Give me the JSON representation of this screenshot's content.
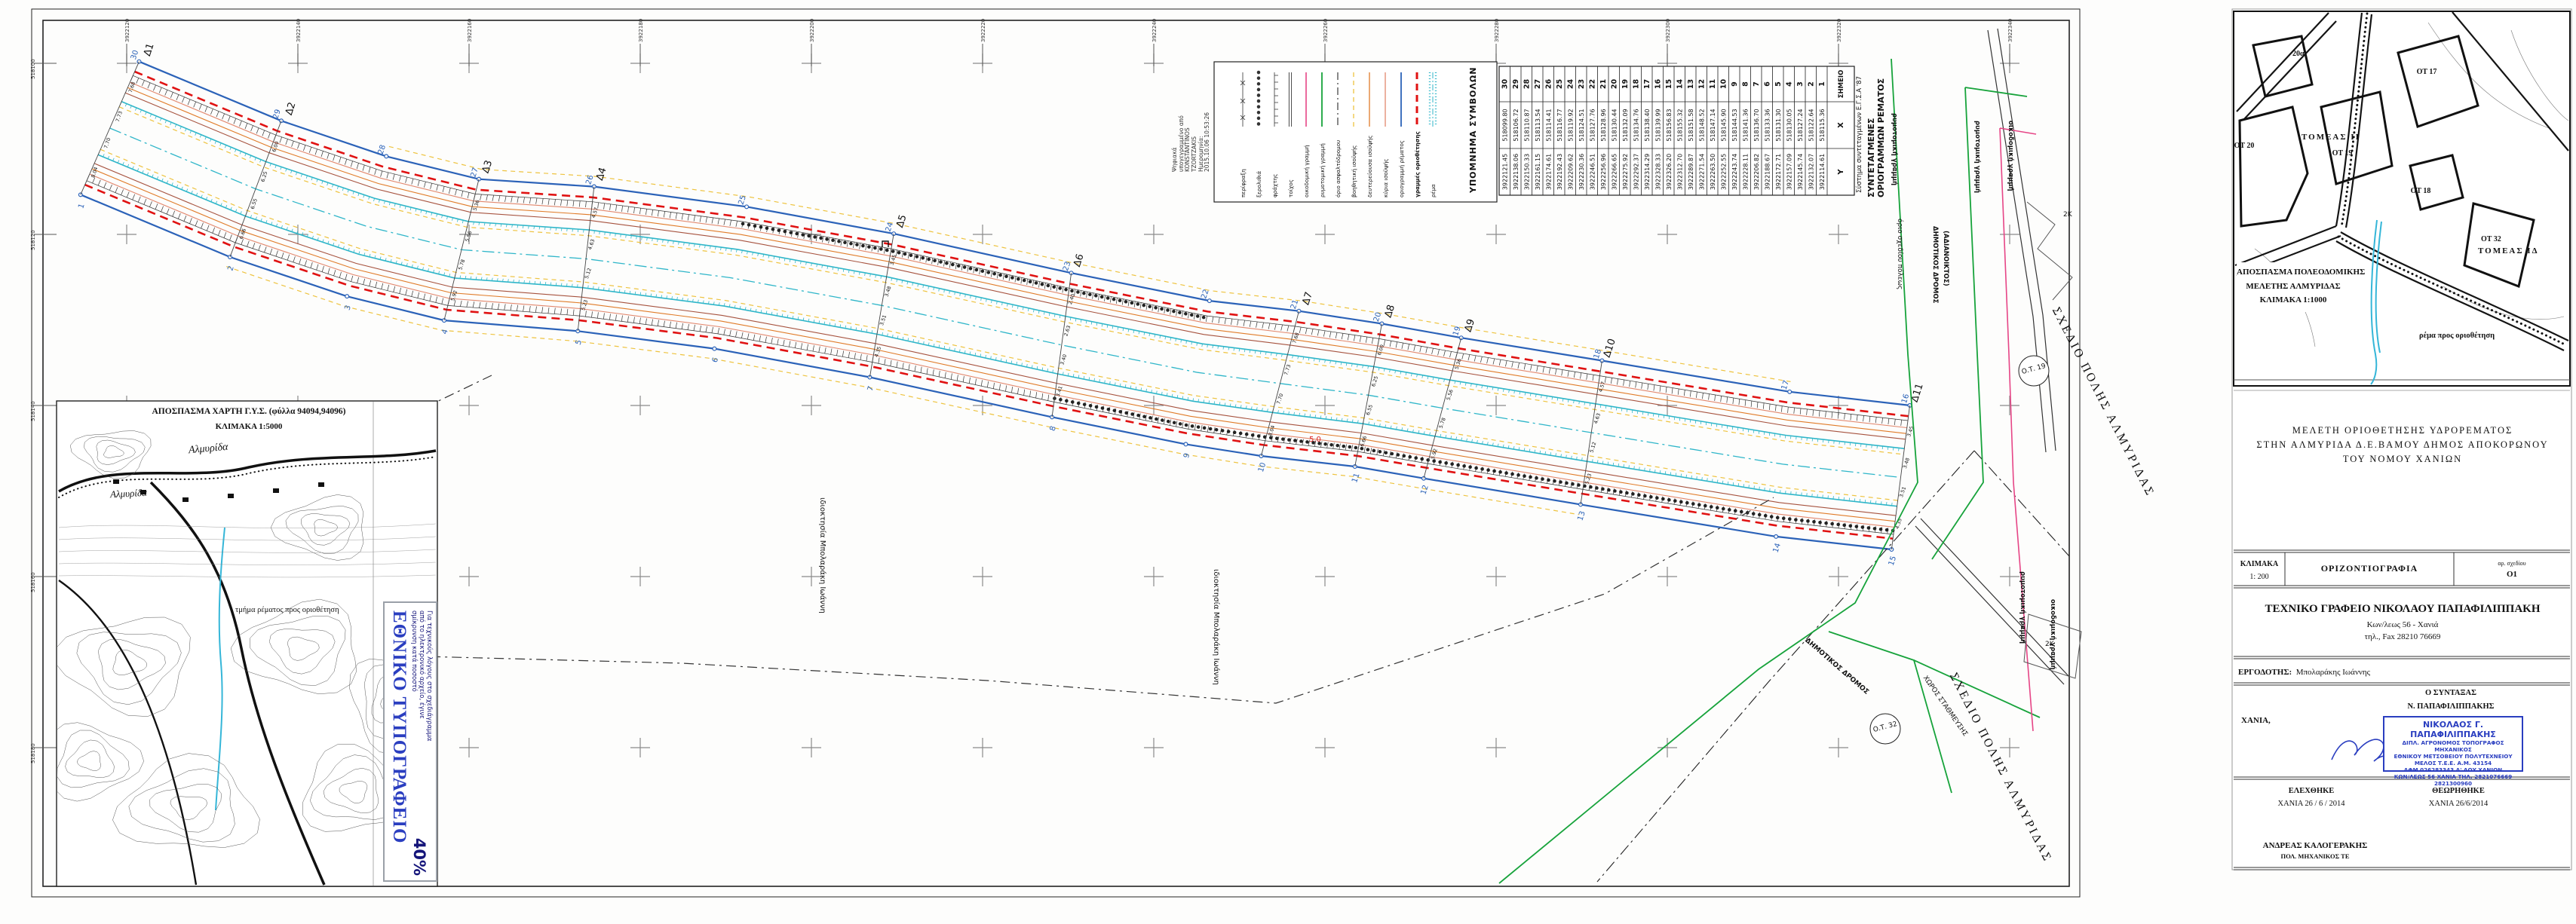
{
  "colors": {
    "boundary_blue": "#2b62b8",
    "delimit_red": "#e01212",
    "stream_cyan": "#2fb6c9",
    "contour_orange": "#e07b28",
    "contour_salmon": "#e2876d",
    "contour_darkred": "#a6523e",
    "contour_yellow": "#eec33f",
    "town_green": "#17a33b",
    "building_pink": "#e64586",
    "stamp_blue": "#2a3ec0",
    "grid_gray": "#8a8a8a",
    "ink_black": "#111111"
  },
  "grid": {
    "top_labels": [
      "3922120",
      "3922140",
      "3922160",
      "3922180",
      "3922200",
      "3922220",
      "3922240",
      "3922260",
      "3922280",
      "3922300",
      "3922320",
      "3922340"
    ],
    "left_labels": [
      "518100",
      "518120",
      "518140",
      "518160",
      "518180"
    ]
  },
  "signature_note": {
    "lines": [
      "Ψηφιακά",
      "υπογεγραμμένο από",
      "KONSTANTINOS",
      "TZORTZAKIS",
      "Ημερομηνία:",
      "2015.10.06 10:53:26"
    ]
  },
  "legend": {
    "title": "ΥΠΟΜΝΗΜΑ ΣΥΜΒΟΛΩΝ",
    "items": [
      {
        "label": "περίφραξη",
        "type": "perifraxi"
      },
      {
        "label": "ξερολιθιά",
        "type": "xerolithia"
      },
      {
        "label": "φράχτης",
        "type": "frachtis"
      },
      {
        "label": "τοίχος",
        "type": "toichos"
      },
      {
        "label": "οικοδομική γραμμή",
        "type": "line-pink"
      },
      {
        "label": "ρυμοτομική γραμμή",
        "type": "line-green"
      },
      {
        "label": "όριο ασφαλτόδρομου",
        "type": "dashdot-black"
      },
      {
        "label": "βοηθητική ισοϋψής",
        "type": "dashed-yellow"
      },
      {
        "label": "δευτερεύουσα ισοϋψής",
        "type": "line-orange"
      },
      {
        "label": "κύρια ισοϋψής",
        "type": "line-salmon"
      },
      {
        "label": "οριογραμμή ρέματος",
        "type": "line-blue"
      },
      {
        "label": "γραμμές οριοθέτησης",
        "type": "dashed-red-bold"
      },
      {
        "label": "ρέμα",
        "type": "band-cyan"
      }
    ]
  },
  "coords_table": {
    "title_line1": "ΣΥΝΤΕΤΑΓΜΕΝΕΣ",
    "title_line2": "ΟΡΙΟΓΡΑΜΜΩΝ ΡΕΜΑΤΟΣ",
    "subtitle": "Σύστημα συντεταγμένων Ε.Γ.Σ.Α '87",
    "headers": [
      "ΣΗΜΕΙΟ",
      "X",
      "Y"
    ],
    "rows": [
      [
        "1",
        "518115.36",
        "3922114.61"
      ],
      [
        "2",
        "518122.64",
        "3922132.07"
      ],
      [
        "3",
        "518127.24",
        "3922145.74"
      ],
      [
        "4",
        "518130.05",
        "3922157.09"
      ],
      [
        "5",
        "518131.30",
        "3922172.71"
      ],
      [
        "6",
        "518133.36",
        "3922188.67"
      ],
      [
        "7",
        "518136.70",
        "3922206.82"
      ],
      [
        "8",
        "518141.36",
        "3922228.11"
      ],
      [
        "9",
        "518144.53",
        "3922243.74"
      ],
      [
        "10",
        "518145.90",
        "3922252.55"
      ],
      [
        "11",
        "518147.14",
        "3922263.50"
      ],
      [
        "12",
        "518148.52",
        "3922271.54"
      ],
      [
        "13",
        "518151.58",
        "3922289.87"
      ],
      [
        "14",
        "518155.32",
        "3922312.70"
      ],
      [
        "15",
        "518156.83",
        "3922326.20"
      ],
      [
        "16",
        "518139.99",
        "3922328.33"
      ],
      [
        "17",
        "518138.40",
        "3922314.29"
      ],
      [
        "18",
        "518134.76",
        "3922292.37"
      ],
      [
        "19",
        "518132.09",
        "3922275.92"
      ],
      [
        "20",
        "518130.44",
        "3922266.65"
      ],
      [
        "21",
        "518128.96",
        "3922256.96"
      ],
      [
        "22",
        "518127.76",
        "3922246.51"
      ],
      [
        "23",
        "518124.51",
        "3922230.36"
      ],
      [
        "24",
        "518119.92",
        "3922209.62"
      ],
      [
        "25",
        "518116.77",
        "3922192.43"
      ],
      [
        "26",
        "518114.41",
        "3922174.61"
      ],
      [
        "27",
        "518113.54",
        "3922161.15"
      ],
      [
        "28",
        "518110.87",
        "3922150.33"
      ],
      [
        "29",
        "518106.72",
        "3922138.06"
      ],
      [
        "30",
        "518099.80",
        "3922121.45"
      ]
    ]
  },
  "plan": {
    "sections": [
      {
        "label": "Δ1",
        "a": 1,
        "b": 30
      },
      {
        "label": "Δ2",
        "a": 2,
        "b": 29
      },
      {
        "label": "Δ3",
        "a": 4,
        "b": 27
      },
      {
        "label": "Δ4",
        "a": 5,
        "b": 26
      },
      {
        "label": "Δ5",
        "a": 7,
        "b": 24
      },
      {
        "label": "Δ6",
        "a": 8,
        "b": 23
      },
      {
        "label": "Δ7",
        "a": 10,
        "b": 21
      },
      {
        "label": "Δ8",
        "a": 11,
        "b": 20
      },
      {
        "label": "Δ9",
        "a": 12,
        "b": 19
      },
      {
        "label": "Δ10",
        "a": 13,
        "b": 18
      },
      {
        "label": "Δ11",
        "a": 15,
        "b": 16
      }
    ],
    "spot_elevations": [
      "8.04",
      "7.70",
      "7.73",
      "7.68",
      "6.66",
      "6.55",
      "6.25",
      "6.00",
      "5.92",
      "5.78",
      "5.56",
      "5.36",
      "5.23",
      "5.12",
      "4.63",
      "4.57",
      "4.35",
      "3.51",
      "3.48",
      "3.45",
      "3.41",
      "3.40",
      "2.63",
      "2.40"
    ],
    "labels": {
      "idioktisia": "ιδιοκτησία Μπολαράκη Ιωάννη",
      "orio_sxediou": "όριο σχεδίου πόλεως",
      "rymotomiki": "ρυμοτομική γραμμή",
      "oikodomiki": "οικοδομική γραμμή",
      "dim_dromos": "ΔΗΜΟΤΙΚΟΣ ΔΡΟΜΟΣ",
      "adianoiktos": "(ΑΔΙΑΝΟΙΚΤΟΣ)",
      "xoros_stathmeysis": "ΧΩΡΟΣ ΣΤΑΘΜΕΥΣΗΣ",
      "sxedio_polis": "ΣΧΕΔΙΟ ΠΟΛΗΣ ΑΛΜΥΡΙΔΑΣ",
      "ot19": "Ο.Τ. 19",
      "ot32": "Ο.Τ. 32",
      "building_2k": "2Κ",
      "contour_value": "5.0"
    }
  },
  "inset_map": {
    "title1": "ΑΠΟΣΠΑΣΜΑ ΧΑΡΤΗ Γ.Υ.Σ. (φύλλα 94094,94096)",
    "title2": "ΚΛΙΜΑΚΑ 1:5000",
    "place1": "Αλμυρίδα",
    "place2": "Αλμυρίδα",
    "note": "τμήμα ρέματος προς οριοθέτηση"
  },
  "press": {
    "name": "ΕΘΝΙΚΟ ΤΥΠΟΓΡΑΦΕΙΟ",
    "line1": "Για τεχνικούς λόγους στο σχεδιάγραμμα",
    "line2": "από το ηλεκτρονικό αρχείο, έγινε",
    "line3": "σμίκρυνση κατά ποσοστό",
    "pct": "40%"
  },
  "urban_extract": {
    "title1": "ΑΠΟΣΠΑΣΜΑ ΠΟΛΕΟΔΟΜΙΚΗΣ",
    "title2": "ΜΕΛΕΤΗΣ ΑΛΜΥΡΙΔΑΣ",
    "title3": "ΚΛΙΜΑΚΑ 1:1000",
    "note": "ρέμα προς οριοθέτηση",
    "ot17": "ΟΤ 17",
    "ot18": "ΟΤ 18",
    "ot19": "ΟΤ 19",
    "ot20": "ΟΤ 20",
    "ot20a": "20α",
    "ot32": "ΟΤ 32",
    "sector_top": "ΤΟΜΕΑΣ ΙΙ",
    "sector_bottom": "ΤΟΜΕΑΣ ΙΔ"
  },
  "title_block": {
    "project_line1": "ΜΕΛΕΤΗ ΟΡΙΟΘΕΤΗΣΗΣ ΥΔΡΟΡΕΜΑΤΟΣ",
    "project_line2": "ΣΤΗΝ ΑΛΜΥΡΙΔΑ Δ.Ε.ΒΑΜΟΥ ΔΗΜΟΣ ΑΠΟΚΟΡΩΝΟΥ",
    "project_line3": "ΤΟΥ ΝΟΜΟΥ ΧΑΝΙΩΝ",
    "scale_label": "ΚΛΙΜΑΚΑ",
    "scale_value": "1: 200",
    "drawing_type": "ΟΡΙΖΟΝΤΙΟΓΡΑΦΙΑ",
    "number_label": "αρ. σχεδίου",
    "number_value": "O1",
    "office_line1": "ΤΕΧΝΙΚΟ ΓΡΑΦΕΙΟ ΝΙΚΟΛΑΟΥ ΠΑΠΑΦΙΛΙΠΠΑΚΗ",
    "office_line2": "Κων/λεως 56  -  Χανιά",
    "office_line3": "τηλ., Fax  28210 76669",
    "employer_label": "ΕΡΓΟΔΟΤΗΣ:",
    "employer": "Μπολαράκης Ιωάννης",
    "author_label": "Ο ΣΥΝΤΑΞΑΣ",
    "author": "Ν. ΠΑΠΑΦΙΛΙΠΠΑΚΗΣ",
    "place": "ΧΑΝΙΑ,",
    "stamp_line1": "ΝΙΚΟΛΑΟΣ Γ. ΠΑΠΑΦΙΛΙΠΠΑΚΗΣ",
    "stamp_line2": "ΔΙΠΛ. ΑΓΡΟΝΟΜΟΣ ΤΟΠΟΓΡΑΦΟΣ ΜΗΧΑΝΙΚΟΣ",
    "stamp_line3": "ΕΘΝΙΚΟΥ ΜΕΤΣΟΒΕΙΟΥ ΠΟΛΥΤΕΧΝΕΙΟΥ",
    "stamp_line4": "ΜΕΛΟΣ Τ.Ε.Ε.  Α.Μ. 43154",
    "stamp_line5": "ΑΦΜ 026283343  Α' ΔΟΥ ΧΑΝΙΩΝ",
    "stamp_line6": "ΚΩΝ/ΛΕΩΣ 56 ΧΑΝΙΑ ΤΗΛ. 2821076669 2821300960",
    "checked_label": "ΕΛΕΧΘΗΚΕ",
    "checked_date": "ΧΑΝΙΑ   26 / 6 / 2014",
    "approved_label": "ΘΕΩΡΗΘΗΚΕ",
    "approved_date": "ΧΑΝΙΑ   26/6/2014",
    "engineer": "ΑΝΔΡΕΑΣ  ΚΑΛΟΓΕΡΑΚΗΣ",
    "engineer_title": "ΠΟΛ. ΜΗΧΑΝΙΚΟΣ ΤΕ"
  }
}
